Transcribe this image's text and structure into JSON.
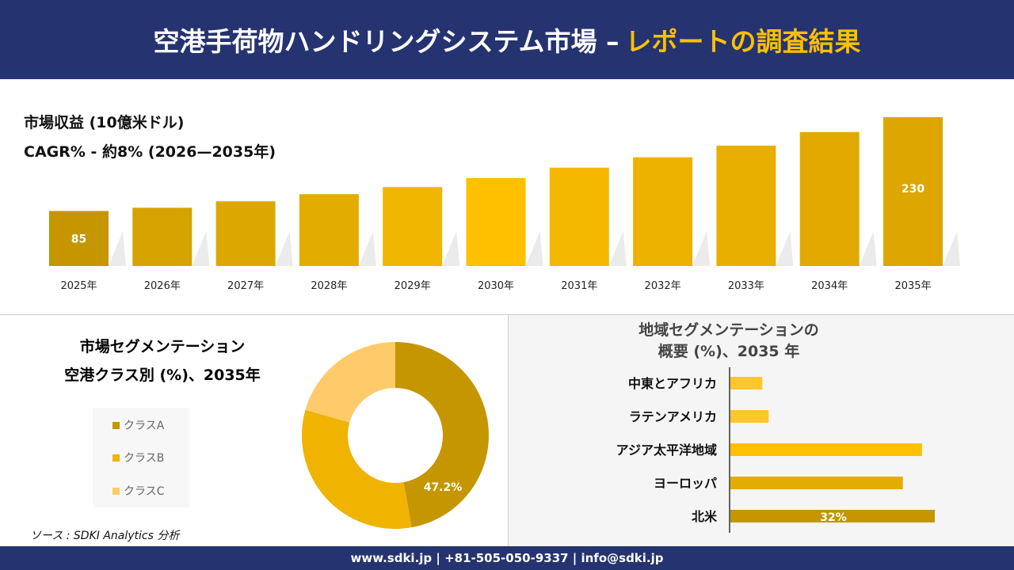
{
  "header": {
    "title_main": "空港手荷物ハンドリングシステム市場 –",
    "title_accent": "レポートの調査結果"
  },
  "revenue": {
    "title": "市場収益 (10億米ドル)",
    "cagr": "CAGR% - 約8% (2026—2035年)"
  },
  "segment": {
    "title_line1": "市場セグメンテーション",
    "title_line2": "空港クラス別 (%)、2035年"
  },
  "region": {
    "title_line1": "地域セグメンテーションの",
    "title_line2": "概要 (%)、2035 年"
  },
  "source": "ソース : SDKI Analytics 分析",
  "footer": "www.sdki.jp | +81-505-050-9337 | info@sdki.jp",
  "chart_data": [
    {
      "type": "bar",
      "categories": [
        "2025年",
        "2026年",
        "2027年",
        "2028年",
        "2029年",
        "2030年",
        "2031年",
        "2032年",
        "2033年",
        "2034年",
        "2035年"
      ],
      "values": [
        85,
        90,
        100,
        111,
        122,
        136,
        152,
        168,
        186,
        207,
        230
      ],
      "data_labels": {
        "0": "85",
        "10": "230"
      },
      "ylim": [
        0,
        230
      ],
      "grid": false,
      "colors": [
        "#C59600",
        "#D6A200",
        "#DCA800",
        "#E2AC00",
        "#F0B600",
        "#FFC000",
        "#F5B800",
        "#EDB200",
        "#E8AE00",
        "#E2AA00",
        "#DDA600"
      ]
    },
    {
      "type": "pie",
      "donut": true,
      "categories": [
        "クラスA",
        "クラスB",
        "クラスC"
      ],
      "values": [
        47.2,
        32.2,
        20.6
      ],
      "data_labels": {
        "0": "47.2%"
      },
      "colors": [
        "#C59600",
        "#EFB300",
        "#FFCA6A"
      ],
      "legend": "left"
    },
    {
      "type": "bar",
      "orientation": "horizontal",
      "categories": [
        "中東とアフリカ",
        "ラテンアメリカ",
        "アジア太平洋地域",
        "ヨーロッパ",
        "北米"
      ],
      "values": [
        5,
        6,
        30,
        27,
        32
      ],
      "data_labels": {
        "4": "32%"
      },
      "colors": [
        "#FFC72C",
        "#FFC72C",
        "#FFC000",
        "#E2AC00",
        "#C59600"
      ]
    }
  ]
}
